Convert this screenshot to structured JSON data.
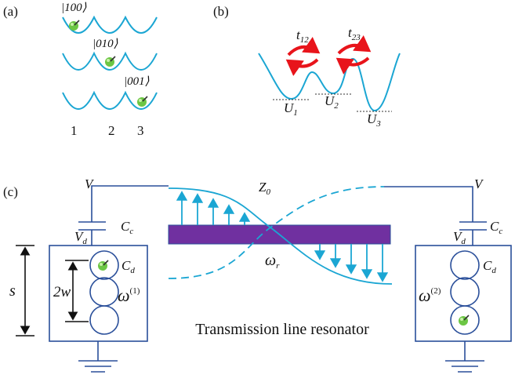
{
  "panel_a": {
    "label": "(a)",
    "states": [
      "|100⟩",
      "|010⟩",
      "|001⟩"
    ],
    "sites": [
      "1",
      "2",
      "3"
    ]
  },
  "panel_b": {
    "label": "(b)",
    "hoppings": [
      {
        "symbol": "t",
        "subscript": "12"
      },
      {
        "symbol": "t",
        "subscript": "23"
      }
    ],
    "potentials": [
      {
        "symbol": "U",
        "subscript": "1"
      },
      {
        "symbol": "U",
        "subscript": "2"
      },
      {
        "symbol": "U",
        "subscript": "3"
      }
    ]
  },
  "panel_c": {
    "label": "(c)",
    "impedance": {
      "symbol": "Z",
      "subscript": "0"
    },
    "resonator_frequency": {
      "symbol": "ω",
      "subscript": "r"
    },
    "spacing": "s",
    "size": "2w",
    "caption": "Transmission line resonator",
    "left": {
      "voltage": "V",
      "coupling_cap": {
        "symbol": "C",
        "subscript": "c"
      },
      "node_voltage": {
        "symbol": "V",
        "subscript": "d"
      },
      "qubit_cap": {
        "symbol": "C",
        "subscript": "d"
      },
      "frequency": {
        "symbol": "ω",
        "superscript": "(1)"
      }
    },
    "right": {
      "voltage": "V",
      "coupling_cap": {
        "symbol": "C",
        "subscript": "c"
      },
      "node_voltage": {
        "symbol": "V",
        "subscript": "d"
      },
      "qubit_cap": {
        "symbol": "C",
        "subscript": "d"
      },
      "frequency": {
        "symbol": "ω",
        "superscript": "(2)"
      }
    }
  }
}
